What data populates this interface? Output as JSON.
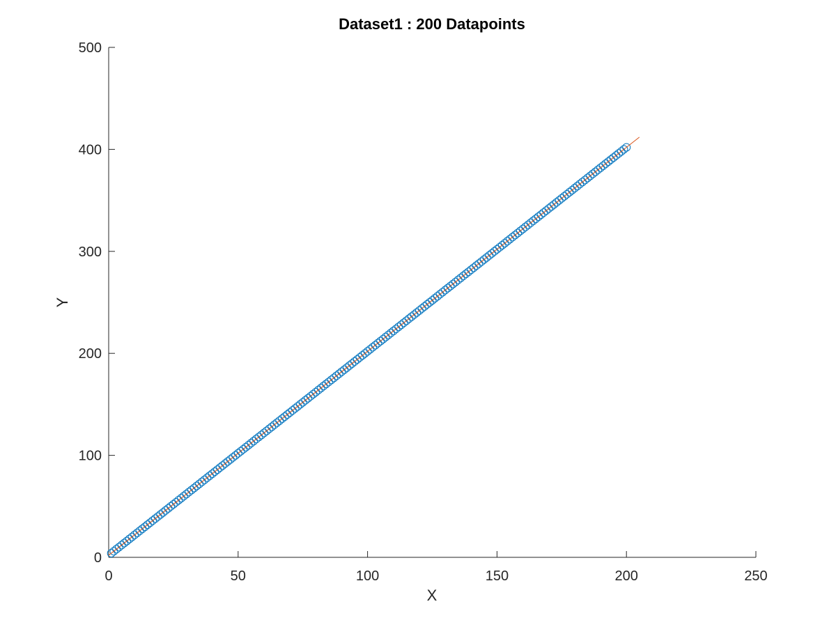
{
  "chart_data": {
    "type": "scatter",
    "title": "Dataset1 : 200 Datapoints",
    "xlabel": "X",
    "ylabel": "Y",
    "xlim": [
      0,
      250
    ],
    "ylim": [
      0,
      500
    ],
    "xticks": [
      0,
      50,
      100,
      150,
      200,
      250
    ],
    "yticks": [
      0,
      100,
      200,
      300,
      400,
      500
    ],
    "grid": false,
    "legend": "none",
    "scatter": {
      "x_start": 1,
      "x_end": 200,
      "count": 200,
      "slope": 2,
      "intercept": 2,
      "marker": "circle",
      "color": "#0072bd"
    },
    "fit_line": {
      "x": [
        0,
        205
      ],
      "y": [
        2,
        412
      ],
      "color": "#d95319"
    }
  }
}
